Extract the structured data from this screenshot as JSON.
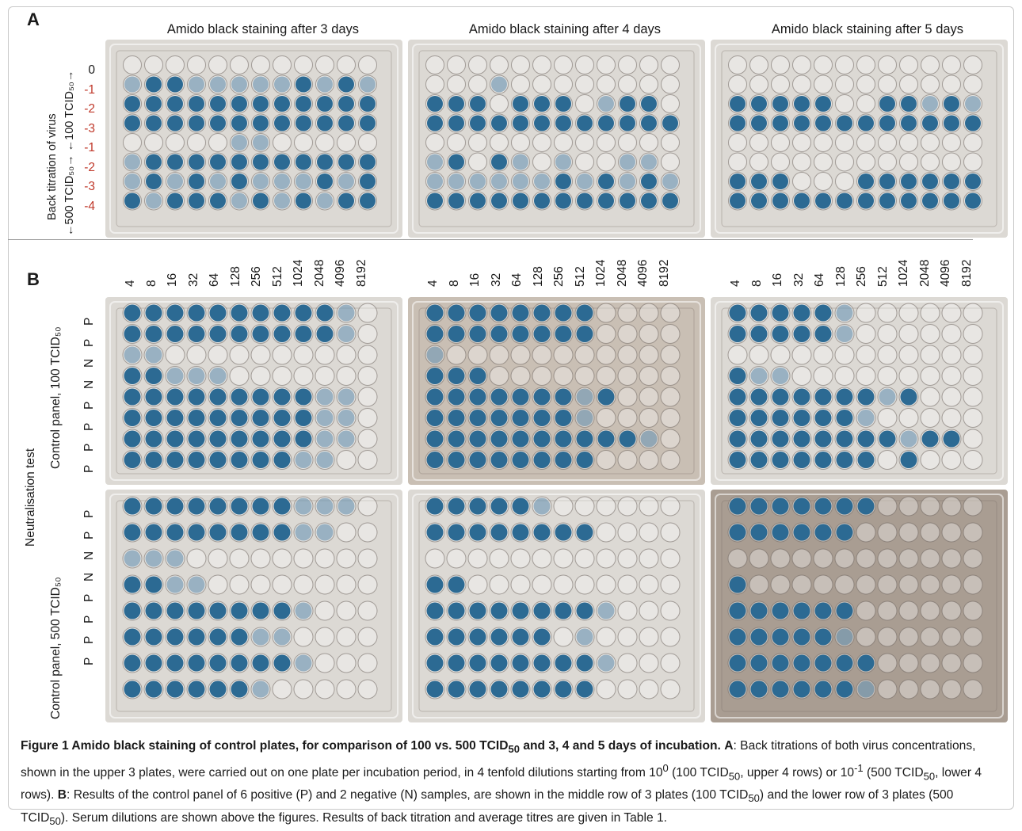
{
  "panel_a": {
    "letter": "A",
    "titles": [
      "Amido black staining after 3 days",
      "Amido black staining after 4 days",
      "Amido black staining after 5 days"
    ],
    "axis_label": "←500 TCID₅₀→ ←100 TCID₅₀→",
    "axis_label_main": "Back titration of virus",
    "row_labels": [
      "0",
      "-1",
      "-2",
      "-3",
      "-1",
      "-2",
      "-3",
      "-4"
    ],
    "row_label_red_from": 1
  },
  "panel_b": {
    "letter": "B",
    "dilutions": [
      "4",
      "8",
      "16",
      "32",
      "64",
      "128",
      "256",
      "512",
      "1024",
      "2048",
      "4096",
      "8192"
    ],
    "row_labels": [
      "P",
      "P",
      "N",
      "N",
      "P",
      "P",
      "P",
      "P"
    ],
    "section_label": "Neutralisation test",
    "group_labels": [
      "Control panel, 100 TCID₅₀",
      "Control panel, 500 TCID₅₀"
    ]
  },
  "colors": {
    "stain": "#2c6a93",
    "plate_light": "#dcd9d4",
    "plate_warm": "#c9bfb4",
    "plate_dark": "#a99d92"
  },
  "caption": {
    "fig_label": "Figure 1",
    "title": "Amido black staining of control plates, for comparison of 100 vs. 500 TCID",
    "title_sub": "50",
    "title_end": " and 3, 4 and 5 days of incubation.",
    "a_label": "A",
    "a_text": ": Back titrations of both virus concentrations, shown in the upper 3 plates, were carried out on one plate per incubation period, in 4 tenfold dilutions starting from 10",
    "a_sup0": "0",
    "a_text2": " (100 TCID",
    "a_text3": ", upper 4 rows) or 10",
    "a_sup1": "-1",
    "a_text4": " (500 TCID",
    "a_text5": ", lower 4 rows). ",
    "b_label": "B",
    "b_text": ": Results of the control panel of 6 positive (P) and 2 negative (N) samples, are shown in the middle row of 3 plates (100 TCID",
    "b_text2": ") and the lower row of 3 plates (500 TCID",
    "b_text3": "). Serum dilutions are shown above the figures. Results of back titration and average titres are given in Table 1.",
    "sub50": "50"
  }
}
